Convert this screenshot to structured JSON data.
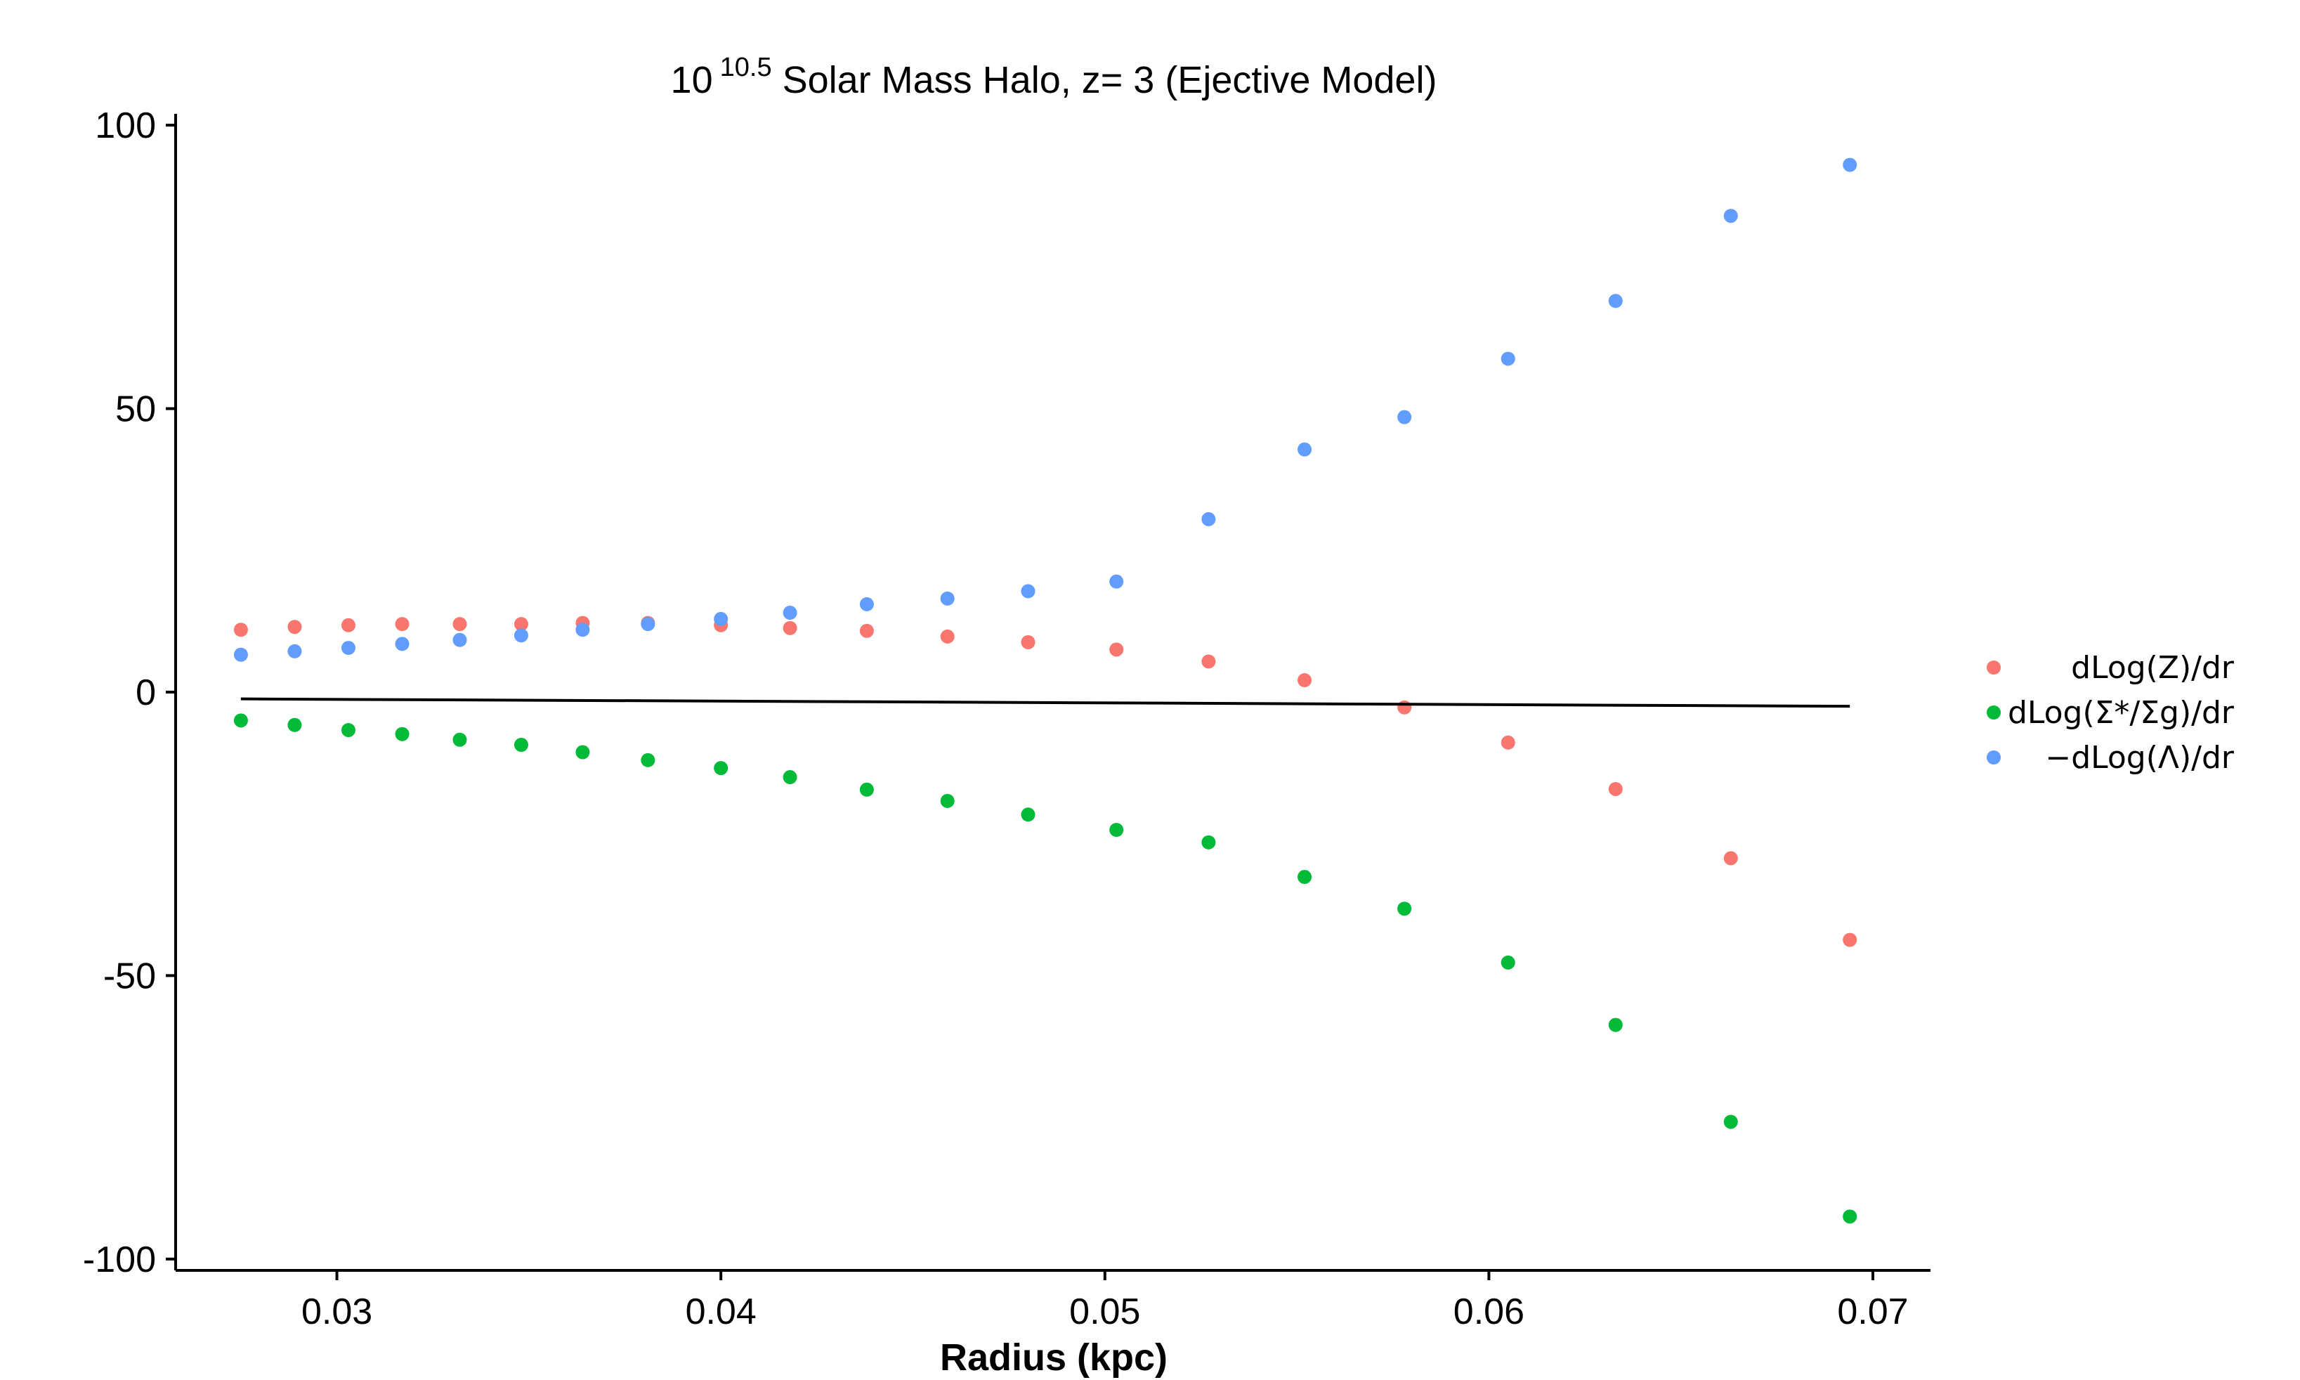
{
  "chart_data": {
    "type": "scatter",
    "title": {
      "base": "10",
      "exponent": "10.5",
      "rest": " Solar Mass Halo, z= 3 (Ejective Model)"
    },
    "xlabel": "Radius (kpc)",
    "ylabel": "",
    "xlim": [
      0.0258,
      0.0715
    ],
    "ylim": [
      -102,
      102
    ],
    "x_ticks": [
      0.03,
      0.04,
      0.05,
      0.06,
      0.07
    ],
    "x_tick_labels": [
      "0.03",
      "0.04",
      "0.05",
      "0.06",
      "0.07"
    ],
    "y_ticks": [
      100,
      50,
      0,
      -50,
      -100
    ],
    "y_tick_labels": [
      "100",
      "50",
      "0",
      "-50",
      "-100"
    ],
    "grid": false,
    "legend_position": "right",
    "x": [
      0.0275,
      0.0289,
      0.0303,
      0.0317,
      0.0332,
      0.0348,
      0.0364,
      0.0381,
      0.04,
      0.0418,
      0.0438,
      0.0459,
      0.048,
      0.0503,
      0.0527,
      0.0552,
      0.0578,
      0.0605,
      0.0633,
      0.0663,
      0.0694
    ],
    "series": [
      {
        "name": "dLog(Z)/dr",
        "color": "#F8766D",
        "marker": "point",
        "values": [
          11,
          11.5,
          11.8,
          12,
          12,
          12,
          12.2,
          12.2,
          11.8,
          11.3,
          10.8,
          9.8,
          8.8,
          7.5,
          5.4,
          2.1,
          -2.7,
          -8.9,
          -17.1,
          -29.3,
          -43.7
        ]
      },
      {
        "name": "dLog(Σ*/Σg)/dr",
        "color": "#00BA38",
        "marker": "point",
        "values": [
          -5,
          -5.8,
          -6.7,
          -7.4,
          -8.4,
          -9.3,
          -10.6,
          -12,
          -13.4,
          -15,
          -17.2,
          -19.2,
          -21.6,
          -24.3,
          -26.5,
          -32.6,
          -38.2,
          -47.7,
          -58.7,
          -75.8,
          -92.5
        ]
      },
      {
        "name": "−dLog(Λ)/dr",
        "color": "#619CFF",
        "marker": "point",
        "values": [
          6.6,
          7.2,
          7.8,
          8.5,
          9.2,
          10,
          11,
          12,
          12.9,
          14,
          15.5,
          16.5,
          17.8,
          19.5,
          30.5,
          42.8,
          48.5,
          58.8,
          69,
          84,
          93
        ]
      },
      {
        "name": "",
        "color": "#000000",
        "marker": "line",
        "x": [
          0.0275,
          0.0694
        ],
        "values": [
          -1.2,
          -2.5
        ]
      }
    ]
  }
}
